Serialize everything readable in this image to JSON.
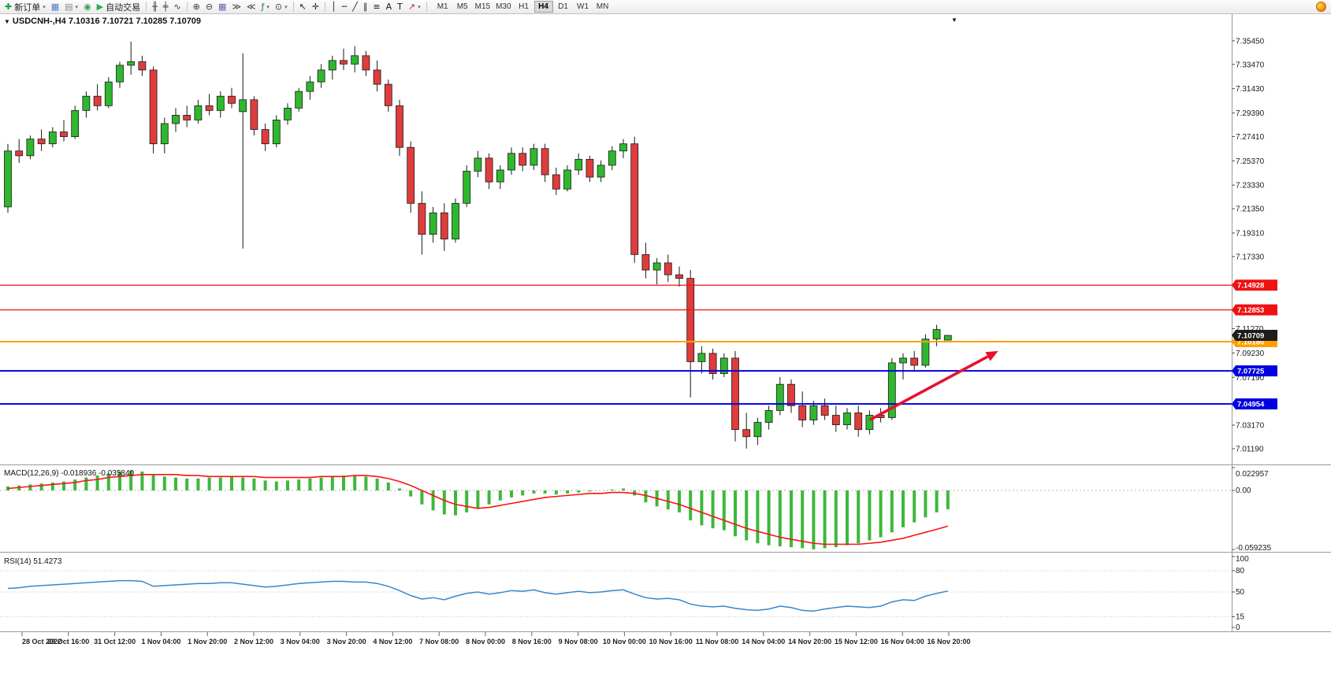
{
  "toolbar": {
    "items": [
      {
        "name": "new-order-button",
        "icon": "new-order-icon",
        "glyph": "✚",
        "color": "#1fa33c",
        "label": "新订单",
        "caret": true
      },
      {
        "name": "charts-window-button",
        "icon": "chart-window-icon",
        "glyph": "▦",
        "color": "#4a7ebf"
      },
      {
        "name": "profiles-button",
        "icon": "profiles-icon",
        "glyph": "▤",
        "color": "#8a8a8a",
        "caret": true
      },
      {
        "name": "sound-alert-button",
        "icon": "sound-icon",
        "glyph": "◉",
        "color": "#33a24c"
      },
      {
        "name": "autotrading-button",
        "icon": "autotrading-play-icon",
        "glyph": "▶",
        "color": "#2eae4f",
        "label": "自动交易"
      },
      {
        "sep": true
      },
      {
        "name": "bar-chart-button",
        "icon": "bar-chart-icon",
        "glyph": "╫",
        "color": "#3c3c3c"
      },
      {
        "name": "candlestick-chart-button",
        "icon": "candlestick-chart-icon",
        "glyph": "╪",
        "color": "#3c3c3c"
      },
      {
        "name": "line-chart-button",
        "icon": "line-chart-icon",
        "glyph": "∿",
        "color": "#3c3c3c"
      },
      {
        "sep": true
      },
      {
        "name": "zoom-in-button",
        "icon": "zoom-in-icon",
        "glyph": "⊕",
        "color": "#3c3c3c"
      },
      {
        "name": "zoom-out-button",
        "icon": "zoom-out-icon",
        "glyph": "⊖",
        "color": "#3c3c3c"
      },
      {
        "name": "tile-windows-button",
        "icon": "tile-windows-icon",
        "glyph": "▦",
        "color": "#7a5ab0"
      },
      {
        "name": "auto-scroll-button",
        "icon": "auto-scroll-icon",
        "glyph": "≫",
        "color": "#3c3c3c"
      },
      {
        "name": "chart-shift-button",
        "icon": "chart-shift-icon",
        "glyph": "≪",
        "color": "#3c3c3c"
      },
      {
        "name": "indicators-button",
        "icon": "indicators-icon",
        "glyph": "ƒ",
        "color": "#1e7b46",
        "caret": true
      },
      {
        "name": "periods-button",
        "icon": "clock-icon",
        "glyph": "⊙",
        "color": "#3c3c3c",
        "caret": true
      },
      {
        "sep": true
      },
      {
        "name": "cursor-button",
        "icon": "cursor-icon",
        "glyph": "↖",
        "color": "#1a1a1a"
      },
      {
        "name": "crosshair-button",
        "icon": "crosshair-icon",
        "glyph": "✛",
        "color": "#1a1a1a"
      },
      {
        "sep": true
      },
      {
        "name": "vertical-line-button",
        "icon": "vertical-line-icon",
        "glyph": "│",
        "color": "#1a1a1a"
      },
      {
        "name": "horizontal-line-button",
        "icon": "horizontal-line-icon",
        "glyph": "─",
        "color": "#1a1a1a"
      },
      {
        "name": "trendline-button",
        "icon": "trendline-icon",
        "glyph": "╱",
        "color": "#1a1a1a"
      },
      {
        "name": "channel-button",
        "icon": "equidistant-channel-icon",
        "glyph": "∥",
        "color": "#1a1a1a"
      },
      {
        "name": "fibonacci-button",
        "icon": "fibonacci-icon",
        "glyph": "≡",
        "color": "#1a1a1a"
      },
      {
        "name": "text-button",
        "icon": "text-icon",
        "glyph": "A",
        "color": "#1a1a1a"
      },
      {
        "name": "text-label-button",
        "icon": "text-label-icon",
        "glyph": "T",
        "color": "#1a1a1a"
      },
      {
        "name": "arrows-button",
        "icon": "arrow-object-icon",
        "glyph": "↗",
        "color": "#b03030",
        "caret": true
      },
      {
        "sep": true
      }
    ],
    "timeframes": [
      "M1",
      "M5",
      "M15",
      "M30",
      "H1",
      "H4",
      "D1",
      "W1",
      "MN"
    ],
    "active_timeframe": "H4"
  },
  "chart_data": [
    {
      "type": "candlestick",
      "symbol_title": "USDCNH-,H4",
      "ohlc_text": "7.10316 7.10721 7.10285 7.10709",
      "current_bar": {
        "open": "7.10316",
        "high": "7.10721",
        "low": "7.10285",
        "close": "7.10709"
      },
      "current_price": "7.10709",
      "last_bar_marker": "▼",
      "collapse_marker": "▼",
      "ylim": [
        7.0,
        7.365
      ],
      "colors": {
        "up": "#2eb82e",
        "down": "#e03c3c",
        "wick": "#1a1a1a"
      },
      "y_axis_labels": [
        "7.35450",
        "7.33470",
        "7.31430",
        "7.29390",
        "7.27410",
        "7.25370",
        "7.23330",
        "7.21350",
        "7.19310",
        "7.17330",
        "7.11270",
        "7.09230",
        "7.07190",
        "7.03170",
        "7.01190"
      ],
      "price_lines": [
        {
          "name": "red-resistance-line-1",
          "value": "7.14928",
          "color": "#ee1111",
          "width": 1.2
        },
        {
          "name": "red-resistance-line-2",
          "value": "7.12853",
          "color": "#ee1111",
          "width": 1.2
        },
        {
          "name": "orange-level-line",
          "value": "7.10180",
          "color": "#ffa000",
          "width": 2
        },
        {
          "name": "blue-support-line-1",
          "value": "7.07725",
          "color": "#0000e0",
          "width": 2
        },
        {
          "name": "blue-support-line-2",
          "value": "7.04954",
          "color": "#0000e0",
          "width": 2
        }
      ],
      "annotation_arrow": {
        "from_index": 77,
        "from_price": 7.036,
        "to_index": 88.5,
        "to_price": 7.094,
        "color": "#e8112d"
      },
      "x_axis_labels": [
        "28 Oct 2022",
        "28 Oct 16:00",
        "31 Oct 12:00",
        "1 Nov 04:00",
        "1 Nov 20:00",
        "2 Nov 12:00",
        "3 Nov 04:00",
        "3 Nov 20:00",
        "4 Nov 12:00",
        "7 Nov 08:00",
        "8 Nov 00:00",
        "8 Nov 16:00",
        "9 Nov 08:00",
        "10 Nov 00:00",
        "10 Nov 16:00",
        "11 Nov 08:00",
        "14 Nov 04:00",
        "14 Nov 20:00",
        "15 Nov 12:00",
        "16 Nov 04:00",
        "16 Nov 20:00"
      ],
      "candles": [
        [
          7.215,
          7.268,
          7.21,
          7.262
        ],
        [
          7.262,
          7.272,
          7.252,
          7.258
        ],
        [
          7.258,
          7.275,
          7.255,
          7.272
        ],
        [
          7.272,
          7.28,
          7.262,
          7.268
        ],
        [
          7.268,
          7.282,
          7.265,
          7.278
        ],
        [
          7.278,
          7.288,
          7.27,
          7.274
        ],
        [
          7.274,
          7.3,
          7.272,
          7.296
        ],
        [
          7.296,
          7.312,
          7.29,
          7.308
        ],
        [
          7.308,
          7.318,
          7.296,
          7.3
        ],
        [
          7.3,
          7.324,
          7.298,
          7.32
        ],
        [
          7.32,
          7.337,
          7.315,
          7.334
        ],
        [
          7.334,
          7.354,
          7.326,
          7.337
        ],
        [
          7.337,
          7.342,
          7.325,
          7.33
        ],
        [
          7.33,
          7.333,
          7.26,
          7.268
        ],
        [
          7.268,
          7.29,
          7.26,
          7.285
        ],
        [
          7.285,
          7.298,
          7.278,
          7.292
        ],
        [
          7.292,
          7.3,
          7.282,
          7.288
        ],
        [
          7.288,
          7.305,
          7.285,
          7.3
        ],
        [
          7.3,
          7.31,
          7.292,
          7.296
        ],
        [
          7.296,
          7.312,
          7.29,
          7.308
        ],
        [
          7.308,
          7.315,
          7.298,
          7.302
        ],
        [
          7.295,
          7.344,
          7.18,
          7.305
        ],
        [
          7.305,
          7.308,
          7.275,
          7.28
        ],
        [
          7.28,
          7.285,
          7.262,
          7.268
        ],
        [
          7.268,
          7.292,
          7.265,
          7.288
        ],
        [
          7.288,
          7.302,
          7.284,
          7.298
        ],
        [
          7.298,
          7.315,
          7.295,
          7.312
        ],
        [
          7.312,
          7.325,
          7.305,
          7.32
        ],
        [
          7.32,
          7.335,
          7.315,
          7.33
        ],
        [
          7.33,
          7.342,
          7.322,
          7.338
        ],
        [
          7.338,
          7.348,
          7.33,
          7.335
        ],
        [
          7.335,
          7.35,
          7.328,
          7.342
        ],
        [
          7.342,
          7.346,
          7.325,
          7.33
        ],
        [
          7.33,
          7.338,
          7.312,
          7.318
        ],
        [
          7.318,
          7.322,
          7.295,
          7.3
        ],
        [
          7.3,
          7.305,
          7.258,
          7.265
        ],
        [
          7.265,
          7.27,
          7.21,
          7.218
        ],
        [
          7.218,
          7.228,
          7.175,
          7.192
        ],
        [
          7.192,
          7.215,
          7.185,
          7.21
        ],
        [
          7.21,
          7.218,
          7.178,
          7.188
        ],
        [
          7.188,
          7.222,
          7.185,
          7.218
        ],
        [
          7.218,
          7.25,
          7.215,
          7.245
        ],
        [
          7.245,
          7.262,
          7.24,
          7.256
        ],
        [
          7.256,
          7.26,
          7.23,
          7.236
        ],
        [
          7.236,
          7.25,
          7.23,
          7.246
        ],
        [
          7.246,
          7.265,
          7.242,
          7.26
        ],
        [
          7.26,
          7.265,
          7.245,
          7.25
        ],
        [
          7.25,
          7.268,
          7.246,
          7.264
        ],
        [
          7.264,
          7.268,
          7.236,
          7.242
        ],
        [
          7.242,
          7.248,
          7.225,
          7.23
        ],
        [
          7.23,
          7.25,
          7.228,
          7.246
        ],
        [
          7.246,
          7.26,
          7.242,
          7.255
        ],
        [
          7.255,
          7.258,
          7.236,
          7.24
        ],
        [
          7.24,
          7.254,
          7.236,
          7.25
        ],
        [
          7.25,
          7.266,
          7.246,
          7.262
        ],
        [
          7.262,
          7.272,
          7.256,
          7.268
        ],
        [
          7.268,
          7.274,
          7.168,
          7.175
        ],
        [
          7.175,
          7.185,
          7.155,
          7.162
        ],
        [
          7.162,
          7.172,
          7.15,
          7.168
        ],
        [
          7.168,
          7.175,
          7.152,
          7.158
        ],
        [
          7.158,
          7.165,
          7.148,
          7.155
        ],
        [
          7.155,
          7.162,
          7.055,
          7.085
        ],
        [
          7.085,
          7.098,
          7.075,
          7.092
        ],
        [
          7.092,
          7.096,
          7.07,
          7.075
        ],
        [
          7.075,
          7.092,
          7.072,
          7.088
        ],
        [
          7.088,
          7.094,
          7.018,
          7.028
        ],
        [
          7.028,
          7.042,
          7.012,
          7.022
        ],
        [
          7.022,
          7.038,
          7.015,
          7.034
        ],
        [
          7.034,
          7.048,
          7.028,
          7.044
        ],
        [
          7.044,
          7.072,
          7.04,
          7.066
        ],
        [
          7.066,
          7.07,
          7.042,
          7.048
        ],
        [
          7.048,
          7.06,
          7.03,
          7.036
        ],
        [
          7.036,
          7.052,
          7.032,
          7.048
        ],
        [
          7.048,
          7.054,
          7.036,
          7.04
        ],
        [
          7.04,
          7.048,
          7.026,
          7.032
        ],
        [
          7.032,
          7.046,
          7.028,
          7.042
        ],
        [
          7.042,
          7.048,
          7.022,
          7.028
        ],
        [
          7.028,
          7.044,
          7.024,
          7.04
        ],
        [
          7.04,
          7.046,
          7.034,
          7.038
        ],
        [
          7.038,
          7.088,
          7.036,
          7.084
        ],
        [
          7.084,
          7.092,
          7.07,
          7.088
        ],
        [
          7.088,
          7.094,
          7.078,
          7.082
        ],
        [
          7.082,
          7.108,
          7.08,
          7.104
        ],
        [
          7.104,
          7.116,
          7.098,
          7.112
        ],
        [
          7.10316,
          7.10721,
          7.10285,
          7.10709
        ]
      ]
    },
    {
      "type": "bar",
      "name": "MACD",
      "label": "MACD(12,26,9)",
      "value_main": "-0.018936",
      "value_signal": "-0.035840",
      "ylim": [
        -0.059235,
        0.022957
      ],
      "axis_labels": [
        "0.022957",
        "0.00",
        "-0.059235"
      ],
      "colors": {
        "histogram": "#3cb83c",
        "signal": "#ff1212"
      },
      "histogram": [
        0.004,
        0.005,
        0.006,
        0.007,
        0.008,
        0.009,
        0.011,
        0.013,
        0.015,
        0.017,
        0.019,
        0.02,
        0.019,
        0.016,
        0.014,
        0.013,
        0.012,
        0.012,
        0.013,
        0.013,
        0.014,
        0.013,
        0.012,
        0.01,
        0.009,
        0.01,
        0.011,
        0.012,
        0.013,
        0.014,
        0.015,
        0.015,
        0.014,
        0.012,
        0.008,
        0.002,
        -0.006,
        -0.014,
        -0.02,
        -0.024,
        -0.025,
        -0.022,
        -0.018,
        -0.014,
        -0.01,
        -0.007,
        -0.005,
        -0.003,
        -0.003,
        -0.004,
        -0.003,
        -0.002,
        -0.001,
        0.0,
        0.001,
        0.002,
        -0.005,
        -0.012,
        -0.016,
        -0.019,
        -0.022,
        -0.03,
        -0.035,
        -0.038,
        -0.04,
        -0.046,
        -0.05,
        -0.053,
        -0.055,
        -0.056,
        -0.057,
        -0.058,
        -0.059,
        -0.058,
        -0.057,
        -0.055,
        -0.053,
        -0.05,
        -0.047,
        -0.042,
        -0.037,
        -0.032,
        -0.027,
        -0.022,
        -0.0189
      ],
      "signal": [
        0.002,
        0.003,
        0.004,
        0.005,
        0.006,
        0.007,
        0.008,
        0.01,
        0.011,
        0.013,
        0.014,
        0.015,
        0.016,
        0.016,
        0.016,
        0.016,
        0.015,
        0.015,
        0.014,
        0.014,
        0.014,
        0.014,
        0.014,
        0.013,
        0.013,
        0.013,
        0.013,
        0.013,
        0.014,
        0.014,
        0.014,
        0.015,
        0.015,
        0.014,
        0.012,
        0.009,
        0.005,
        0.0,
        -0.005,
        -0.01,
        -0.014,
        -0.016,
        -0.018,
        -0.017,
        -0.015,
        -0.013,
        -0.011,
        -0.009,
        -0.007,
        -0.006,
        -0.005,
        -0.004,
        -0.003,
        -0.003,
        -0.002,
        -0.002,
        -0.003,
        -0.005,
        -0.008,
        -0.011,
        -0.014,
        -0.018,
        -0.022,
        -0.026,
        -0.03,
        -0.034,
        -0.038,
        -0.041,
        -0.044,
        -0.047,
        -0.049,
        -0.051,
        -0.053,
        -0.054,
        -0.054,
        -0.054,
        -0.054,
        -0.053,
        -0.052,
        -0.05,
        -0.048,
        -0.045,
        -0.042,
        -0.039,
        -0.0358
      ]
    },
    {
      "type": "line",
      "name": "RSI",
      "label": "RSI(14)",
      "value": "51.4273",
      "ylim": [
        0,
        100
      ],
      "levels": [
        80,
        50,
        15
      ],
      "axis_labels": [
        "100",
        "80",
        "50",
        "15",
        "0"
      ],
      "color": "#3a86c8",
      "values": [
        55,
        56,
        58,
        59,
        60,
        61,
        62,
        63,
        64,
        65,
        66,
        66,
        65,
        58,
        59,
        60,
        61,
        62,
        62,
        63,
        63,
        61,
        59,
        57,
        58,
        60,
        62,
        63,
        64,
        65,
        65,
        64,
        64,
        62,
        58,
        52,
        45,
        40,
        42,
        39,
        44,
        48,
        50,
        47,
        49,
        52,
        51,
        53,
        49,
        47,
        49,
        51,
        49,
        50,
        52,
        53,
        47,
        42,
        40,
        41,
        39,
        33,
        30,
        29,
        30,
        27,
        25,
        24,
        26,
        30,
        28,
        24,
        23,
        26,
        28,
        30,
        29,
        28,
        30,
        36,
        39,
        38,
        44,
        48,
        51.43
      ]
    }
  ]
}
